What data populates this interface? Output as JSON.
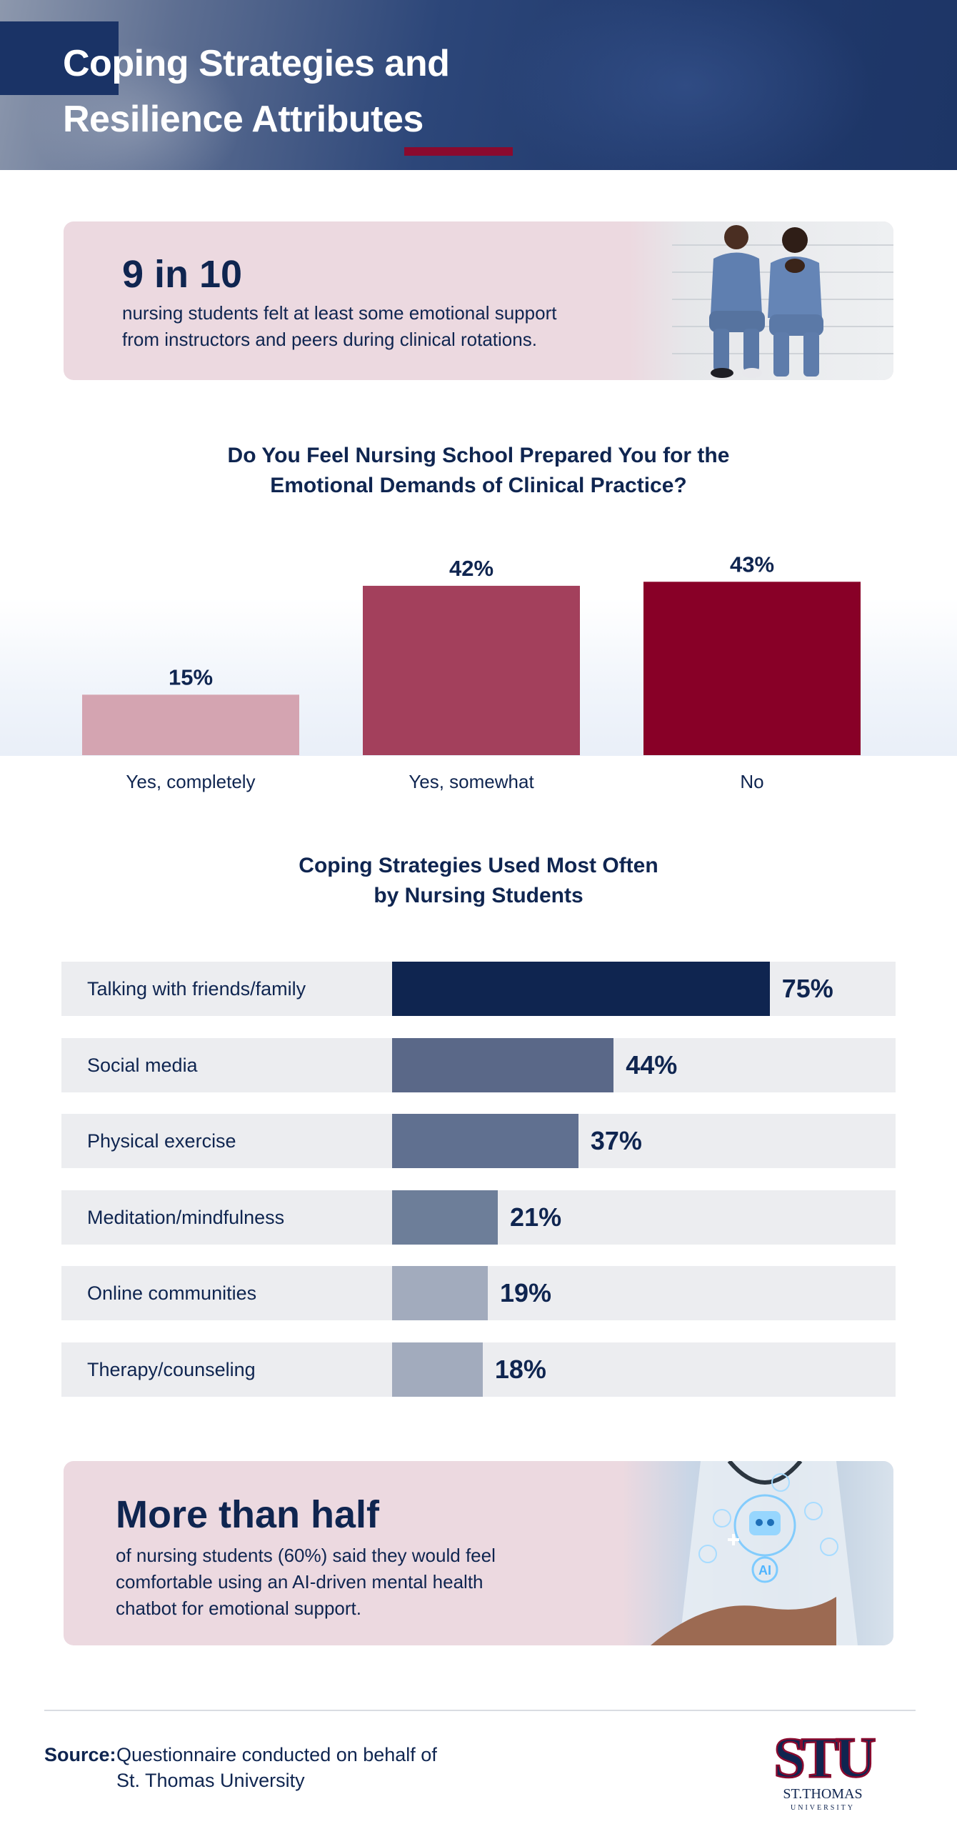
{
  "header": {
    "title_line1": "Coping Strategies and",
    "title_line2": "Resilience Attributes"
  },
  "callout1": {
    "headline": "9 in 10",
    "description_line1": "nursing students felt at least some emotional support",
    "description_line2": "from instructors and peers during clinical rotations."
  },
  "chart1": {
    "title_line1": "Do You Feel Nursing School Prepared You for the",
    "title_line2": "Emotional Demands of Clinical Practice?"
  },
  "chart2": {
    "title_line1": "Coping Strategies Used Most Often",
    "title_line2": "by Nursing Students"
  },
  "chart_data": [
    {
      "type": "bar",
      "title": "Do You Feel Nursing School Prepared You for the Emotional Demands of Clinical Practice?",
      "categories": [
        "Yes, completely",
        "Yes, somewhat",
        "No"
      ],
      "values": [
        15,
        42,
        43
      ],
      "value_labels": [
        "15%",
        "42%",
        "43%"
      ],
      "colors": [
        "#d4a4b1",
        "#a3405c",
        "#880027"
      ],
      "xlabel": "",
      "ylabel": "",
      "ylim": [
        0,
        45
      ],
      "grid": false
    },
    {
      "type": "bar",
      "orientation": "horizontal",
      "title": "Coping Strategies Used Most Often by Nursing Students",
      "categories": [
        "Talking with friends/family",
        "Social media",
        "Physical exercise",
        "Meditation/mindfulness",
        "Online communities",
        "Therapy/counseling"
      ],
      "values": [
        75,
        44,
        37,
        21,
        19,
        18
      ],
      "value_labels": [
        "75%",
        "44%",
        "37%",
        "21%",
        "19%",
        "18%"
      ],
      "colors": [
        "#0f2550",
        "#5a6888",
        "#607090",
        "#6d7e99",
        "#a2abbd",
        "#a2abbd"
      ],
      "xlim": [
        0,
        100
      ],
      "grid": false
    }
  ],
  "callout2": {
    "headline": "More than half",
    "description_line1": "of nursing students (60%) said they would feel",
    "description_line2": "comfortable using an AI-driven mental health",
    "description_line3": "chatbot for emotional support.",
    "ai_badge": "AI"
  },
  "footer": {
    "source_label": "Source:",
    "source_line1": "Questionnaire conducted on behalf of",
    "source_line2": "St. Thomas University",
    "logo_mark": "STU",
    "logo_name": "ST.THOMAS",
    "logo_sub": "UNIVERSITY"
  },
  "colors": {
    "navy": "#0f2550",
    "maroon": "#8a0a2e",
    "pink_card": "#ecd9e0",
    "row_bg": "#ecedf0"
  }
}
